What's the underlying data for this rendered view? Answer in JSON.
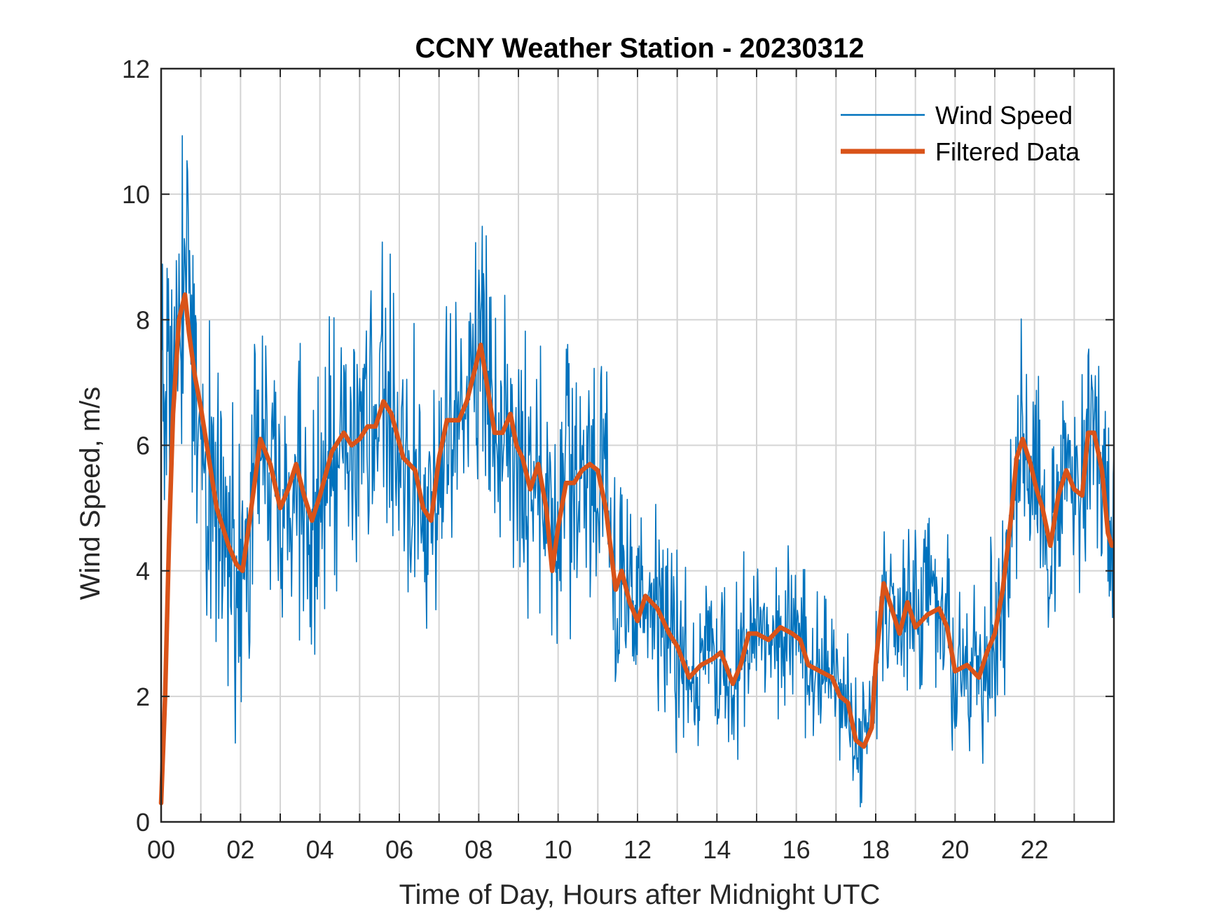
{
  "chart_data": {
    "type": "line",
    "title": "CCNY Weather Station - 20230312",
    "xlabel": "Time of Day, Hours after Midnight UTC",
    "ylabel": "Wind Speed, m/s",
    "xlim": [
      0,
      24
    ],
    "ylim": [
      0,
      12
    ],
    "grid": true,
    "legend_position": "top-right",
    "x_tick_values": [
      0,
      2,
      4,
      6,
      8,
      10,
      12,
      14,
      16,
      18,
      20,
      22
    ],
    "x_tick_labels": [
      "00",
      "02",
      "04",
      "06",
      "08",
      "10",
      "12",
      "14",
      "16",
      "18",
      "20",
      "22"
    ],
    "x_minor_grid_step": 1,
    "y_tick_values": [
      0,
      2,
      4,
      6,
      8,
      10,
      12
    ],
    "y_tick_labels": [
      "0",
      "2",
      "4",
      "6",
      "8",
      "10",
      "12"
    ],
    "series": [
      {
        "name": "Wind Speed",
        "color": "#0072BD",
        "style": "thin-noisy",
        "noise_amplitude": [
          {
            "x": 0,
            "amp": 2.2
          },
          {
            "x": 1.2,
            "amp": 1.8
          },
          {
            "x": 11,
            "amp": 1.5
          },
          {
            "x": 13,
            "amp": 1.0
          },
          {
            "x": 17,
            "amp": 0.9
          },
          {
            "x": 18,
            "amp": 1.0
          },
          {
            "x": 21,
            "amp": 1.3
          },
          {
            "x": 24,
            "amp": 1.4
          }
        ]
      },
      {
        "name": "Filtered Data",
        "color": "#D95319",
        "style": "thick",
        "x": [
          0,
          0.1,
          0.2,
          0.3,
          0.45,
          0.6,
          0.7,
          0.85,
          1.0,
          1.2,
          1.4,
          1.5,
          1.7,
          1.9,
          2.05,
          2.25,
          2.5,
          2.75,
          3.0,
          3.2,
          3.4,
          3.6,
          3.8,
          4.0,
          4.3,
          4.6,
          4.8,
          5.0,
          5.2,
          5.4,
          5.6,
          5.8,
          6.1,
          6.4,
          6.6,
          6.8,
          7.0,
          7.2,
          7.5,
          7.7,
          7.9,
          8.05,
          8.2,
          8.4,
          8.6,
          8.8,
          8.95,
          9.1,
          9.3,
          9.5,
          9.7,
          9.85,
          10.0,
          10.2,
          10.4,
          10.6,
          10.8,
          11.0,
          11.2,
          11.45,
          11.6,
          11.8,
          12.0,
          12.2,
          12.5,
          12.8,
          13.0,
          13.3,
          13.6,
          13.9,
          14.1,
          14.4,
          14.6,
          14.8,
          15.0,
          15.3,
          15.6,
          15.9,
          16.1,
          16.3,
          16.6,
          16.9,
          17.1,
          17.3,
          17.5,
          17.7,
          17.9,
          18.0,
          18.2,
          18.4,
          18.6,
          18.8,
          19.0,
          19.3,
          19.6,
          19.8,
          20.0,
          20.3,
          20.6,
          20.8,
          21.0,
          21.2,
          21.4,
          21.55,
          21.7,
          21.9,
          22.05,
          22.2,
          22.4,
          22.6,
          22.8,
          23.0,
          23.2,
          23.35,
          23.5,
          23.7,
          23.85,
          23.95
        ],
        "y": [
          0.3,
          2.0,
          4.5,
          6.5,
          8.0,
          8.4,
          7.8,
          7.1,
          6.6,
          5.8,
          5.0,
          4.8,
          4.4,
          4.1,
          4.0,
          4.9,
          6.1,
          5.7,
          5.0,
          5.3,
          5.7,
          5.2,
          4.8,
          5.2,
          5.9,
          6.2,
          6.0,
          6.1,
          6.3,
          6.3,
          6.7,
          6.5,
          5.8,
          5.6,
          5.0,
          4.8,
          5.8,
          6.4,
          6.4,
          6.7,
          7.2,
          7.6,
          7.0,
          6.2,
          6.2,
          6.5,
          6.0,
          5.8,
          5.3,
          5.7,
          5.0,
          4.0,
          4.7,
          5.4,
          5.4,
          5.6,
          5.7,
          5.6,
          5.0,
          3.7,
          4.0,
          3.5,
          3.2,
          3.6,
          3.4,
          3.0,
          2.8,
          2.3,
          2.5,
          2.6,
          2.7,
          2.2,
          2.5,
          3.0,
          3.0,
          2.9,
          3.1,
          3.0,
          2.9,
          2.5,
          2.4,
          2.3,
          2.0,
          1.9,
          1.3,
          1.2,
          1.5,
          2.5,
          3.8,
          3.4,
          3.0,
          3.5,
          3.1,
          3.3,
          3.4,
          3.1,
          2.4,
          2.5,
          2.3,
          2.7,
          3.0,
          3.7,
          4.8,
          5.8,
          6.1,
          5.7,
          5.3,
          5.0,
          4.4,
          5.2,
          5.6,
          5.3,
          5.2,
          6.2,
          6.2,
          5.6,
          4.6,
          4.4
        ]
      }
    ]
  }
}
